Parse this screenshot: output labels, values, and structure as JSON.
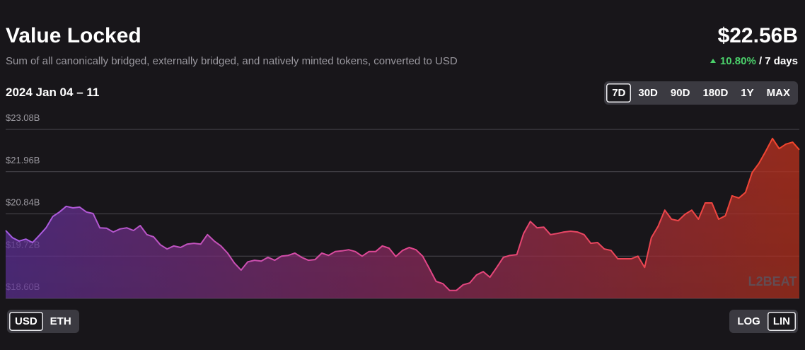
{
  "header": {
    "title": "Value Locked",
    "subtitle": "Sum of all canonically bridged, externally bridged, and natively minted tokens, converted to USD",
    "total": "$22.56B",
    "change": "10.80%",
    "period": "/ 7 days",
    "date_range": "2024 Jan 04 – 11"
  },
  "controls": {
    "ranges": [
      "7D",
      "30D",
      "90D",
      "180D",
      "1Y",
      "MAX"
    ],
    "currencies": [
      "USD",
      "ETH"
    ],
    "scales": [
      "LOG",
      "LIN"
    ]
  },
  "chart_data": {
    "type": "area",
    "watermark": "L2BEAT",
    "color": "#e0448f",
    "ylim": [
      18.6,
      23.08
    ],
    "grid": true,
    "log_scale": false,
    "yticks": [
      {
        "value": 18.6,
        "label": "$18.60B"
      },
      {
        "value": 19.72,
        "label": "$19.72B"
      },
      {
        "value": 20.84,
        "label": "$20.84B"
      },
      {
        "value": 21.96,
        "label": "$21.96B"
      },
      {
        "value": 23.08,
        "label": "$23.08B"
      }
    ],
    "values": [
      20.4,
      20.21,
      20.12,
      20.17,
      20.08,
      20.27,
      20.47,
      20.77,
      20.89,
      21.04,
      21.0,
      21.02,
      20.89,
      20.85,
      20.47,
      20.46,
      20.36,
      20.44,
      20.47,
      20.4,
      20.53,
      20.29,
      20.23,
      20.02,
      19.91,
      19.99,
      19.95,
      20.04,
      20.06,
      20.04,
      20.29,
      20.12,
      19.99,
      19.8,
      19.54,
      19.35,
      19.57,
      19.61,
      19.59,
      19.69,
      19.61,
      19.72,
      19.74,
      19.8,
      19.69,
      19.61,
      19.63,
      19.8,
      19.74,
      19.84,
      19.86,
      19.89,
      19.84,
      19.72,
      19.84,
      19.84,
      19.99,
      19.93,
      19.71,
      19.87,
      19.95,
      19.89,
      19.72,
      19.39,
      19.05,
      18.99,
      18.81,
      18.81,
      18.96,
      19.01,
      19.22,
      19.31,
      19.16,
      19.42,
      19.69,
      19.74,
      19.76,
      20.32,
      20.64,
      20.47,
      20.49,
      20.29,
      20.32,
      20.36,
      20.38,
      20.36,
      20.29,
      20.06,
      20.08,
      19.91,
      19.87,
      19.65,
      19.65,
      19.65,
      19.72,
      19.42,
      20.21,
      20.51,
      20.94,
      20.7,
      20.66,
      20.83,
      20.94,
      20.7,
      21.13,
      21.13,
      20.7,
      20.79,
      21.32,
      21.26,
      21.41,
      21.94,
      22.18,
      22.5,
      22.84,
      22.57,
      22.69,
      22.74,
      22.54
    ]
  }
}
